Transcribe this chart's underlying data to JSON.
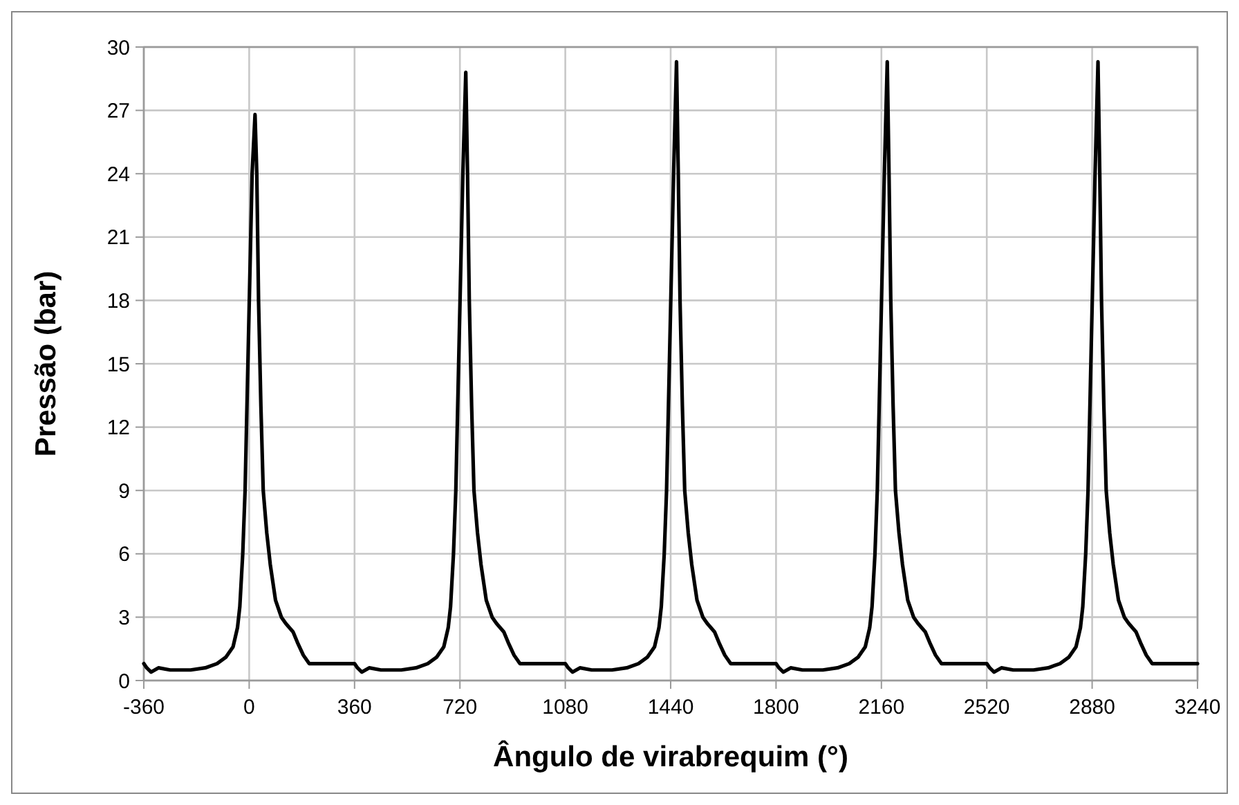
{
  "chart_data": {
    "type": "line",
    "xlabel": "Ângulo de virabrequim (°)",
    "ylabel": "Pressão (bar)",
    "xlim": [
      -360,
      3240
    ],
    "xticks": [
      -360,
      0,
      360,
      720,
      1080,
      1440,
      1800,
      2160,
      2520,
      2880,
      3240
    ],
    "ylim": [
      0,
      30
    ],
    "yticks": [
      0,
      3,
      6,
      9,
      12,
      15,
      18,
      21,
      24,
      27,
      30
    ],
    "grid": true,
    "marker": "none",
    "line_style": "solid",
    "series": [
      {
        "color": "#000000",
        "x": [
          -360,
          -350,
          -335,
          -310,
          -270,
          -200,
          -150,
          -110,
          -80,
          -55,
          -40,
          -32,
          -22,
          -14,
          -6,
          2,
          10,
          20,
          26,
          32,
          40,
          48,
          60,
          72,
          90,
          110,
          125,
          150,
          165,
          185,
          205,
          250,
          300,
          350,
          360,
          370,
          385,
          410,
          450,
          520,
          570,
          610,
          640,
          665,
          680,
          688,
          698,
          706,
          714,
          722,
          730,
          740,
          746,
          752,
          760,
          768,
          780,
          792,
          810,
          830,
          845,
          870,
          885,
          905,
          925,
          970,
          1020,
          1070,
          1080,
          1090,
          1105,
          1130,
          1170,
          1240,
          1290,
          1330,
          1360,
          1385,
          1400,
          1408,
          1418,
          1426,
          1434,
          1442,
          1450,
          1460,
          1466,
          1472,
          1480,
          1488,
          1500,
          1512,
          1530,
          1550,
          1565,
          1590,
          1605,
          1625,
          1645,
          1690,
          1740,
          1790,
          1800,
          1810,
          1825,
          1850,
          1890,
          1960,
          2010,
          2050,
          2080,
          2105,
          2120,
          2128,
          2138,
          2146,
          2154,
          2162,
          2170,
          2180,
          2186,
          2192,
          2200,
          2208,
          2220,
          2232,
          2250,
          2270,
          2285,
          2310,
          2325,
          2345,
          2365,
          2410,
          2460,
          2510,
          2520,
          2530,
          2545,
          2570,
          2610,
          2680,
          2730,
          2770,
          2800,
          2825,
          2840,
          2848,
          2858,
          2866,
          2874,
          2882,
          2890,
          2900,
          2906,
          2912,
          2920,
          2928,
          2940,
          2952,
          2970,
          2990,
          3005,
          3030,
          3045,
          3065,
          3085,
          3130,
          3180,
          3230,
          3240
        ],
        "values": [
          0.8,
          0.6,
          0.4,
          0.6,
          0.5,
          0.5,
          0.6,
          0.8,
          1.1,
          1.6,
          2.5,
          3.5,
          6,
          9,
          14,
          19,
          24,
          26.8,
          24,
          18,
          13,
          9,
          7,
          5.5,
          3.8,
          3,
          2.7,
          2.3,
          1.8,
          1.2,
          0.8,
          0.8,
          0.8,
          0.8,
          0.8,
          0.6,
          0.4,
          0.6,
          0.5,
          0.5,
          0.6,
          0.8,
          1.1,
          1.6,
          2.5,
          3.5,
          6,
          9,
          14,
          19,
          24,
          28.8,
          24,
          18,
          13,
          9,
          7,
          5.5,
          3.8,
          3,
          2.7,
          2.3,
          1.8,
          1.2,
          0.8,
          0.8,
          0.8,
          0.8,
          0.8,
          0.6,
          0.4,
          0.6,
          0.5,
          0.5,
          0.6,
          0.8,
          1.1,
          1.6,
          2.5,
          3.5,
          6,
          9,
          14,
          19,
          24,
          29.3,
          24,
          18,
          13,
          9,
          7,
          5.5,
          3.8,
          3,
          2.7,
          2.3,
          1.8,
          1.2,
          0.8,
          0.8,
          0.8,
          0.8,
          0.8,
          0.6,
          0.4,
          0.6,
          0.5,
          0.5,
          0.6,
          0.8,
          1.1,
          1.6,
          2.5,
          3.5,
          6,
          9,
          14,
          19,
          24,
          29.3,
          24,
          18,
          13,
          9,
          7,
          5.5,
          3.8,
          3,
          2.7,
          2.3,
          1.8,
          1.2,
          0.8,
          0.8,
          0.8,
          0.8,
          0.8,
          0.6,
          0.4,
          0.6,
          0.5,
          0.5,
          0.6,
          0.8,
          1.1,
          1.6,
          2.5,
          3.5,
          6,
          9,
          14,
          19,
          24,
          29.3,
          24,
          18,
          13,
          9,
          7,
          5.5,
          3.8,
          3,
          2.7,
          2.3,
          1.8,
          1.2,
          0.8,
          0.8,
          0.8,
          0.8,
          0.8
        ]
      }
    ]
  }
}
